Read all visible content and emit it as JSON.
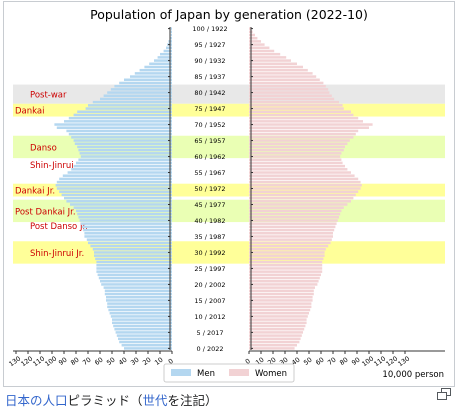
{
  "caption": {
    "link1": "日本の人口",
    "text1": "ピラミッド（",
    "link2": "世代",
    "text2": "を注記）"
  },
  "icons": {
    "enlarge": "magnify-clip-icon"
  },
  "chart_data": {
    "type": "bar",
    "orientation": "horizontal-population-pyramid",
    "title": "Population of Japan by generation (2022-10)",
    "units_label": "10,000 person",
    "xlim": [
      0,
      130
    ],
    "x_ticks": [
      130,
      120,
      110,
      100,
      90,
      80,
      70,
      60,
      50,
      40,
      30,
      20,
      10,
      0
    ],
    "age_ticks": [
      "100 / 1922",
      "95 / 1927",
      "90 / 1932",
      "85 / 1937",
      "80 / 1942",
      "75 / 1947",
      "70 / 1952",
      "65 / 1957",
      "60 / 1962",
      "55 / 1967",
      "50 / 1972",
      "45 / 1977",
      "40 / 1982",
      "35 / 1987",
      "30 / 1992",
      "25 / 1997",
      "20 / 2002",
      "15 / 2007",
      "10 / 2012",
      "5 / 2017",
      "0 / 2022"
    ],
    "legend": [
      {
        "name": "Men",
        "color": "#b4d7f0"
      },
      {
        "name": "Women",
        "color": "#f2d2d4"
      }
    ],
    "series": [
      {
        "name": "Men",
        "color": "#b4d7f0",
        "ages": [
          0,
          1,
          2,
          3,
          4,
          5,
          6,
          7,
          8,
          9,
          10,
          11,
          12,
          13,
          14,
          15,
          16,
          17,
          18,
          19,
          20,
          21,
          22,
          23,
          24,
          25,
          26,
          27,
          28,
          29,
          30,
          31,
          32,
          33,
          34,
          35,
          36,
          37,
          38,
          39,
          40,
          41,
          42,
          43,
          44,
          45,
          46,
          47,
          48,
          49,
          50,
          51,
          52,
          53,
          54,
          55,
          56,
          57,
          58,
          59,
          60,
          61,
          62,
          63,
          64,
          65,
          66,
          67,
          68,
          69,
          70,
          71,
          72,
          73,
          74,
          75,
          76,
          77,
          78,
          79,
          80,
          81,
          82,
          83,
          84,
          85,
          86,
          87,
          88,
          89,
          90,
          91,
          92,
          93,
          94,
          95,
          96,
          97,
          98,
          99,
          100
        ],
        "values": [
          40,
          42,
          44,
          45,
          46,
          47,
          48,
          49,
          50,
          50,
          51,
          52,
          53,
          54,
          54,
          55,
          55,
          56,
          56,
          57,
          59,
          60,
          61,
          62,
          63,
          63,
          63,
          63,
          64,
          65,
          65,
          66,
          68,
          70,
          71,
          73,
          73,
          74,
          75,
          76,
          77,
          78,
          79,
          80,
          82,
          85,
          88,
          90,
          92,
          94,
          96,
          97,
          96,
          94,
          91,
          87,
          84,
          82,
          80,
          78,
          76,
          77,
          78,
          79,
          81,
          82,
          84,
          86,
          88,
          96,
          98,
          90,
          86,
          82,
          79,
          72,
          70,
          66,
          60,
          57,
          54,
          51,
          48,
          44,
          40,
          35,
          31,
          27,
          23,
          19,
          15,
          12,
          10,
          7,
          5,
          4,
          3,
          2,
          1,
          1,
          1
        ]
      },
      {
        "name": "Women",
        "color": "#f2d2d4",
        "ages": [
          0,
          1,
          2,
          3,
          4,
          5,
          6,
          7,
          8,
          9,
          10,
          11,
          12,
          13,
          14,
          15,
          16,
          17,
          18,
          19,
          20,
          21,
          22,
          23,
          24,
          25,
          26,
          27,
          28,
          29,
          30,
          31,
          32,
          33,
          34,
          35,
          36,
          37,
          38,
          39,
          40,
          41,
          42,
          43,
          44,
          45,
          46,
          47,
          48,
          49,
          50,
          51,
          52,
          53,
          54,
          55,
          56,
          57,
          58,
          59,
          60,
          61,
          62,
          63,
          64,
          65,
          66,
          67,
          68,
          69,
          70,
          71,
          72,
          73,
          74,
          75,
          76,
          77,
          78,
          79,
          80,
          81,
          82,
          83,
          84,
          85,
          86,
          87,
          88,
          89,
          90,
          91,
          92,
          93,
          94,
          95,
          96,
          97,
          98,
          99,
          100
        ],
        "values": [
          38,
          40,
          42,
          43,
          44,
          45,
          46,
          47,
          48,
          48,
          49,
          50,
          51,
          52,
          52,
          53,
          53,
          54,
          54,
          55,
          57,
          58,
          59,
          60,
          61,
          61,
          61,
          61,
          62,
          63,
          63,
          64,
          66,
          68,
          69,
          70,
          70,
          71,
          72,
          73,
          74,
          75,
          76,
          77,
          79,
          82,
          85,
          87,
          89,
          91,
          93,
          94,
          93,
          91,
          88,
          85,
          82,
          80,
          78,
          77,
          76,
          77,
          79,
          80,
          82,
          84,
          87,
          89,
          91,
          100,
          103,
          95,
          91,
          87,
          85,
          79,
          78,
          75,
          71,
          69,
          67,
          66,
          64,
          62,
          59,
          56,
          53,
          49,
          45,
          40,
          35,
          31,
          26,
          21,
          17,
          13,
          10,
          7,
          5,
          3,
          2
        ]
      }
    ],
    "generations": [
      {
        "name": "Post-war",
        "age_range": [
          77,
          82
        ],
        "color": "#e8e8e8"
      },
      {
        "name": "Dankai",
        "age_range": [
          73,
          76
        ],
        "color": "#ffff99"
      },
      {
        "name": "Danso",
        "age_range": [
          60,
          66
        ],
        "color": "#eaffb4"
      },
      {
        "name": "Shin-Jinrui",
        "age_range": [
          56,
          59
        ],
        "color": "#ffffff"
      },
      {
        "name": "Dankai Jr.",
        "age_range": [
          48,
          51
        ],
        "color": "#ffff99"
      },
      {
        "name": "Post Dankai Jr.",
        "age_range": [
          40,
          46
        ],
        "color": "#eaffb4"
      },
      {
        "name": "Post Danso Jr.",
        "age_range": [
          38,
          39
        ],
        "color": "#ffffff"
      },
      {
        "name": "Shin-Jinrui Jr.",
        "age_range": [
          27,
          33
        ],
        "color": "#ffff99"
      }
    ]
  }
}
